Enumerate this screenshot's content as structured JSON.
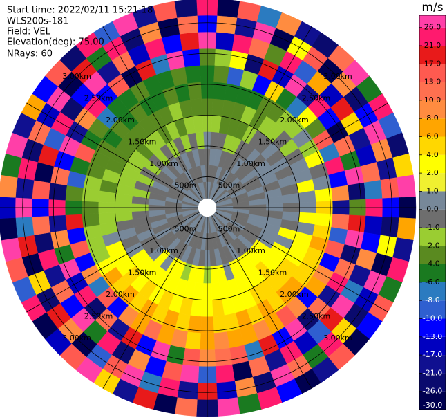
{
  "chart_data": {
    "type": "ppi",
    "start_time": "Start time: 2022/02/11 15:21:18",
    "instrument": "WLS200s-181",
    "field": "Field: VEL",
    "elevation": "Elevation(deg): 75.00",
    "nrays": "NRays: 60",
    "azimuths": [
      0,
      6,
      12,
      18,
      24,
      30,
      36,
      42,
      48,
      54,
      60,
      66,
      72,
      78,
      84,
      90,
      96,
      102,
      108,
      114,
      120,
      126,
      132,
      138,
      144,
      150,
      156,
      162,
      168,
      174,
      180,
      186,
      192,
      198,
      204,
      210,
      216,
      222,
      228,
      234,
      240,
      246,
      252,
      258,
      264,
      270,
      276,
      282,
      288,
      294,
      300,
      306,
      312,
      318,
      324,
      330,
      336,
      342,
      348,
      354
    ],
    "ranges_km": [
      0.15,
      0.42,
      0.69,
      0.96,
      1.23,
      1.5,
      1.77,
      2.04,
      2.31,
      2.58,
      2.85,
      3.12,
      3.39
    ],
    "values": [
      [
        0.5,
        -0.5,
        -0.5,
        0.5,
        -1.5,
        -3,
        -5,
        -5,
        -3,
        28,
        -13,
        23
      ],
      [
        0.5,
        -0.5,
        0.5,
        -0.5,
        -1.5,
        -3,
        -5,
        -3,
        -1.5,
        -15,
        9,
        -28
      ],
      [
        -0.5,
        -0.5,
        0.5,
        -0.5,
        -3,
        -3,
        -5,
        -9,
        3,
        23,
        -19,
        15
      ],
      [
        0.5,
        0.5,
        -0.5,
        -1.5,
        -3,
        -3,
        -5,
        -1.5,
        -24,
        11,
        28,
        -7
      ],
      [
        0.5,
        -0.5,
        -0.5,
        -1.5,
        -3,
        -1.5,
        -5,
        -11,
        19,
        -3,
        -28,
        9
      ],
      [
        -0.5,
        0.5,
        -0.5,
        -0.5,
        -1.5,
        -3,
        -3,
        5,
        -15,
        23,
        3,
        -19
      ],
      [
        0.5,
        -0.5,
        0.5,
        -0.5,
        -0.5,
        -1.5,
        -3,
        -5,
        28,
        -9,
        15,
        -24
      ],
      [
        0.5,
        -0.5,
        -0.5,
        0.5,
        -0.5,
        -1.5,
        -1.5,
        -7,
        -19,
        7,
        -28,
        11
      ],
      [
        -0.5,
        0.5,
        -0.5,
        -0.5,
        0.5,
        -0.5,
        -1.5,
        3,
        23,
        -15,
        9,
        28
      ],
      [
        0.5,
        -0.5,
        0.5,
        0.5,
        -0.5,
        -1.5,
        0.5,
        -3,
        -11,
        19,
        -24,
        -5
      ],
      [
        0.5,
        -0.5,
        -0.5,
        0.5,
        0.5,
        -0.5,
        -1.5,
        15,
        -28,
        5,
        -13,
        23
      ],
      [
        -0.5,
        0.5,
        -0.5,
        0.5,
        -0.5,
        0.5,
        3,
        -7,
        11,
        -19,
        28,
        -9
      ],
      [
        0.5,
        -0.5,
        0.5,
        -0.5,
        0.5,
        0.5,
        -0.5,
        23,
        -5,
        -15,
        9,
        -24
      ],
      [
        0.5,
        -0.5,
        -0.5,
        0.5,
        -0.5,
        3,
        0.5,
        -13,
        28,
        11,
        -19,
        5
      ],
      [
        -0.5,
        -0.5,
        0.5,
        0.5,
        0.5,
        0.5,
        3,
        9,
        -24,
        -7,
        15,
        28
      ],
      [
        0.5,
        -0.5,
        -0.5,
        0.5,
        -0.5,
        0.5,
        5,
        -19,
        -3,
        23,
        -11,
        -28
      ],
      [
        0.5,
        0.5,
        -0.5,
        -0.5,
        0.5,
        3,
        3,
        11,
        19,
        -15,
        -24,
        7
      ],
      [
        -0.5,
        -0.5,
        0.5,
        0.5,
        -0.5,
        0.5,
        5,
        -9,
        28,
        -13,
        3,
        -19
      ],
      [
        0.5,
        -0.5,
        0.5,
        0.5,
        3,
        3,
        7,
        15,
        -24,
        9,
        -28,
        23
      ],
      [
        0.5,
        -0.5,
        -0.5,
        0.5,
        0.5,
        3,
        5,
        -11,
        11,
        -19,
        28,
        -5
      ],
      [
        -0.5,
        0.5,
        -0.5,
        0.5,
        3,
        3,
        5,
        9,
        23,
        -7,
        -15,
        13
      ],
      [
        0.5,
        -0.5,
        -0.5,
        3,
        3,
        5,
        5,
        7,
        -19,
        28,
        -24,
        -11
      ],
      [
        0.5,
        -0.5,
        0.5,
        3,
        3,
        5,
        7,
        -13,
        11,
        19,
        5,
        -28
      ],
      [
        -0.5,
        0.5,
        -0.5,
        3,
        5,
        5,
        7,
        9,
        -24,
        -9,
        23,
        15
      ],
      [
        0.5,
        -0.5,
        -0.5,
        3,
        3,
        5,
        5,
        15,
        28,
        -15,
        -5,
        -19
      ],
      [
        0.5,
        -0.5,
        0.5,
        3,
        3,
        5,
        7,
        7,
        -11,
        23,
        11,
        -28
      ],
      [
        -0.5,
        0.5,
        -0.5,
        3,
        3,
        3,
        5,
        9,
        19,
        -19,
        28,
        -13
      ],
      [
        0.5,
        -0.5,
        -0.5,
        0.5,
        3,
        3,
        7,
        7,
        -7,
        11,
        -24,
        23
      ],
      [
        0.5,
        -0.5,
        0.5,
        3,
        3,
        3,
        5,
        7,
        15,
        -28,
        9,
        -5
      ],
      [
        -0.5,
        -0.5,
        -0.5,
        3,
        3,
        5,
        5,
        9,
        11,
        23,
        -15,
        28
      ],
      [
        0.5,
        -0.5,
        0.5,
        -1.5,
        3,
        3,
        7,
        7,
        9,
        -9,
        19,
        -24
      ],
      [
        0.5,
        0.5,
        -0.5,
        3,
        3,
        3,
        7,
        5,
        13,
        28,
        -19,
        11
      ],
      [
        -0.5,
        -0.5,
        0.5,
        3,
        3,
        5,
        5,
        9,
        -5,
        15,
        23,
        -28
      ],
      [
        0.5,
        -0.5,
        -0.5,
        -1.5,
        3,
        3,
        7,
        7,
        28,
        -13,
        -7,
        19
      ],
      [
        0.5,
        -0.5,
        0.5,
        3,
        3,
        5,
        5,
        11,
        -11,
        9,
        28,
        -19
      ],
      [
        -0.5,
        0.5,
        -0.5,
        3,
        3,
        3,
        7,
        7,
        19,
        -24,
        15,
        5
      ],
      [
        0.5,
        -0.5,
        -0.5,
        0.5,
        3,
        5,
        5,
        9,
        -19,
        23,
        -9,
        28
      ],
      [
        0.5,
        -0.5,
        0.5,
        3,
        3,
        3,
        7,
        -11,
        11,
        -5,
        -28,
        13
      ],
      [
        -0.5,
        -0.5,
        -0.5,
        0.5,
        3,
        5,
        5,
        15,
        -24,
        28,
        9,
        -15
      ],
      [
        0.5,
        0.5,
        -0.5,
        -0.5,
        3,
        3,
        7,
        -7,
        23,
        -13,
        19,
        -28
      ],
      [
        0.5,
        -0.5,
        0.5,
        -0.5,
        0.5,
        3,
        3,
        9,
        -15,
        11,
        -24,
        23
      ],
      [
        -0.5,
        -0.5,
        -0.5,
        0.5,
        -0.5,
        3,
        -1.5,
        -11,
        28,
        -19,
        5,
        -9
      ],
      [
        0.5,
        -0.5,
        0.5,
        -0.5,
        0.5,
        0.5,
        -1.5,
        13,
        -5,
        23,
        -28,
        15
      ],
      [
        0.5,
        0.5,
        -0.5,
        -0.5,
        -0.5,
        -1.5,
        -1.5,
        -13,
        9,
        -24,
        19,
        28
      ],
      [
        -0.5,
        -0.5,
        0.5,
        -0.5,
        -1.5,
        -1.5,
        -3,
        19,
        -19,
        11,
        -7,
        -28
      ],
      [
        0.5,
        -0.5,
        -0.5,
        -1.5,
        -1.5,
        -1.5,
        -3,
        -5,
        23,
        -11,
        28,
        -15
      ],
      [
        0.5,
        -0.5,
        0.5,
        -0.5,
        -1.5,
        -1.5,
        -1.5,
        -3,
        -24,
        15,
        -19,
        9
      ],
      [
        -0.5,
        0.5,
        -0.5,
        -1.5,
        -1.5,
        -3,
        -1.5,
        -9,
        11,
        -28,
        23,
        -5
      ],
      [
        0.5,
        -0.5,
        -0.5,
        -0.5,
        -1.5,
        -1.5,
        -3,
        -5,
        -13,
        19,
        -24,
        28
      ],
      [
        0.5,
        -0.5,
        0.5,
        -1.5,
        -1.5,
        -3,
        -3,
        15,
        28,
        -9,
        11,
        -19
      ],
      [
        -0.5,
        -0.5,
        -0.5,
        -0.5,
        -1.5,
        -3,
        -3,
        -5,
        -19,
        23,
        -15,
        7
      ],
      [
        0.5,
        0.5,
        -0.5,
        -1.5,
        -1.5,
        -3,
        -5,
        -3,
        9,
        -24,
        28,
        -11
      ],
      [
        0.5,
        -0.5,
        0.5,
        -0.5,
        -3,
        -3,
        -3,
        -7,
        23,
        -13,
        -28,
        15
      ],
      [
        -0.5,
        -0.5,
        -0.5,
        -1.5,
        -1.5,
        -3,
        -5,
        -5,
        -11,
        28,
        19,
        -24
      ],
      [
        0.5,
        -0.5,
        0.5,
        -0.5,
        -1.5,
        -3,
        -3,
        -5,
        15,
        -19,
        -5,
        23
      ],
      [
        0.5,
        0.5,
        -0.5,
        -1.5,
        -3,
        -3,
        -5,
        -3,
        -28,
        11,
        24,
        -9
      ],
      [
        -0.5,
        -0.5,
        0.5,
        -0.5,
        -1.5,
        -3,
        -5,
        -5,
        19,
        -15,
        -24,
        28
      ],
      [
        0.5,
        -0.5,
        -0.5,
        -1.5,
        -3,
        -1.5,
        -3,
        -5,
        -7,
        23,
        9,
        -19
      ],
      [
        0.5,
        -0.5,
        0.5,
        -0.5,
        -1.5,
        -3,
        -5,
        -3,
        28,
        -11,
        -28,
        15
      ],
      [
        -0.5,
        0.5,
        -0.5,
        -1.5,
        -1.5,
        -3,
        -3,
        -5,
        -13,
        19,
        11,
        -24
      ]
    ],
    "range_rings": [
      {
        "value": 0.5,
        "label": "500m"
      },
      {
        "value": 1,
        "label": "1.00km"
      },
      {
        "value": 1.5,
        "label": "1.50km"
      },
      {
        "value": 2,
        "label": "2.00km"
      },
      {
        "value": 2.5,
        "label": "2.50km"
      },
      {
        "value": 3,
        "label": "3.00km"
      }
    ],
    "colorbar": {
      "title": "m/s",
      "lim": [
        -30,
        30
      ],
      "ticks": [
        {
          "value": -30,
          "label": "-30.0"
        },
        {
          "value": -26,
          "label": "-26.0"
        },
        {
          "value": -21,
          "label": "-21.0"
        },
        {
          "value": -17,
          "label": "-17.0"
        },
        {
          "value": -13,
          "label": "-13.0"
        },
        {
          "value": -10,
          "label": "-10.0"
        },
        {
          "value": -8,
          "label": "-8.0"
        },
        {
          "value": -6,
          "label": "-6.0"
        },
        {
          "value": -4,
          "label": "-4.0"
        },
        {
          "value": -2,
          "label": "-2.0"
        },
        {
          "value": -1,
          "label": "-1.0"
        },
        {
          "value": 0,
          "label": "0.0"
        },
        {
          "value": 1,
          "label": "1.0"
        },
        {
          "value": 2,
          "label": "2.0"
        },
        {
          "value": 4,
          "label": "4.0"
        },
        {
          "value": 6,
          "label": "6.0"
        },
        {
          "value": 8,
          "label": "8.0"
        },
        {
          "value": 10,
          "label": "10.0"
        },
        {
          "value": 13,
          "label": "13.0"
        },
        {
          "value": 17,
          "label": "17.0"
        },
        {
          "value": 21,
          "label": "21.0"
        },
        {
          "value": 26,
          "label": "26.0"
        }
      ],
      "colors": [
        "#000050",
        "#0a0a6e",
        "#101090",
        "#0000c0",
        "#0000ff",
        "#2f5fd0",
        "#2b7bc0",
        "#1a7a20",
        "#5a8a20",
        "#9acd32",
        "#6e6e6e",
        "#778899",
        "#f0f030",
        "#ffff00",
        "#ffd700",
        "#ffa500",
        "#ff8c40",
        "#ff7050",
        "#ff5a50",
        "#e81a1a",
        "#ff1a6e",
        "#ff3fa8"
      ]
    }
  }
}
